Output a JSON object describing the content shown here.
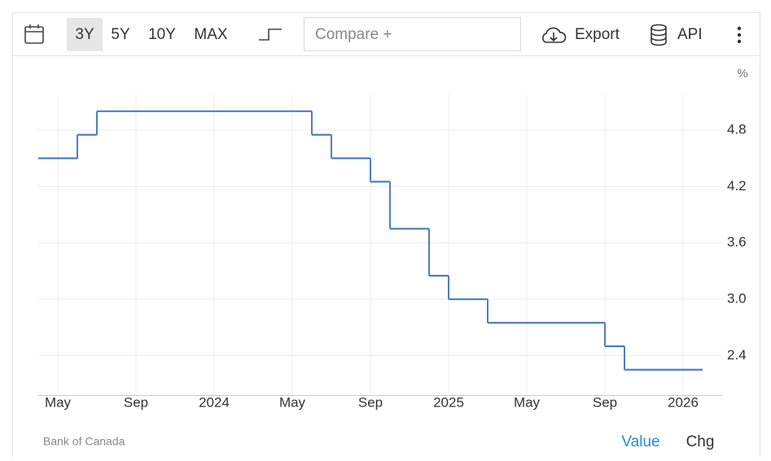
{
  "toolbar": {
    "ranges": [
      "3Y",
      "5Y",
      "10Y",
      "MAX"
    ],
    "selected_range": "3Y",
    "compare_placeholder": "Compare +",
    "export": "Export",
    "api": "API"
  },
  "chart_data": {
    "type": "line",
    "drawstyle": "steps-post",
    "y_unit": "%",
    "x": [
      "2023-04",
      "2023-06",
      "2023-07",
      "2024-06",
      "2024-07",
      "2024-09",
      "2024-10",
      "2024-12",
      "2025-01",
      "2025-03",
      "2025-09",
      "2025-10",
      "2026-02"
    ],
    "series": [
      {
        "name": "Value",
        "color": "#4e7fbf",
        "values": [
          4.5,
          4.75,
          5.0,
          4.75,
          4.5,
          4.25,
          3.75,
          3.25,
          3.0,
          2.75,
          2.5,
          2.25,
          2.25
        ]
      }
    ],
    "xlim": [
      "2023-04",
      "2026-03"
    ],
    "xticks": [
      {
        "value": "2023-05",
        "label": "May"
      },
      {
        "value": "2023-09",
        "label": "Sep"
      },
      {
        "value": "2024-01",
        "label": "2024"
      },
      {
        "value": "2024-05",
        "label": "May"
      },
      {
        "value": "2024-09",
        "label": "Sep"
      },
      {
        "value": "2025-01",
        "label": "2025"
      },
      {
        "value": "2025-05",
        "label": "May"
      },
      {
        "value": "2025-09",
        "label": "Sep"
      },
      {
        "value": "2026-01",
        "label": "2026"
      }
    ],
    "ylim": [
      1.98,
      5.18
    ],
    "yticks": [
      2.4,
      {
        "value": 3.0,
        "label": "3.0"
      },
      3.6,
      4.2,
      4.8
    ],
    "grid": true
  },
  "footer": {
    "source": "Bank of Canada",
    "tabs": [
      "Value",
      "Chg"
    ],
    "active_tab": "Value"
  }
}
